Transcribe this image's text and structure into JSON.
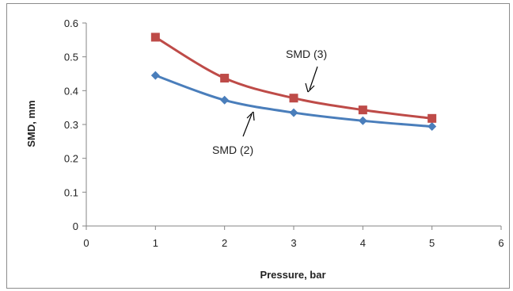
{
  "chart_data": {
    "type": "line",
    "title": "",
    "xlabel": "Pressure, bar",
    "ylabel": "SMD, mm",
    "xlim": [
      0,
      6
    ],
    "ylim": [
      0,
      0.6
    ],
    "x_ticks": [
      "0",
      "1",
      "2",
      "3",
      "4",
      "5",
      "6"
    ],
    "y_ticks": [
      "0",
      "0.1",
      "0.2",
      "0.3",
      "0.4",
      "0.5",
      "0.6"
    ],
    "grid": false,
    "legend": "none",
    "series": [
      {
        "name": "SMD (2)",
        "color": "#4a7ebb",
        "marker": "diamond",
        "x": [
          1,
          2,
          3,
          4,
          5
        ],
        "y": [
          0.445,
          0.372,
          0.335,
          0.311,
          0.294
        ]
      },
      {
        "name": "SMD (3)",
        "color": "#be4b48",
        "marker": "square",
        "x": [
          1,
          2,
          3,
          4,
          5
        ],
        "y": [
          0.558,
          0.437,
          0.378,
          0.343,
          0.318
        ]
      }
    ],
    "annotations": [
      {
        "text": "SMD (3)",
        "series": 1
      },
      {
        "text": "SMD (2)",
        "series": 0
      }
    ]
  }
}
